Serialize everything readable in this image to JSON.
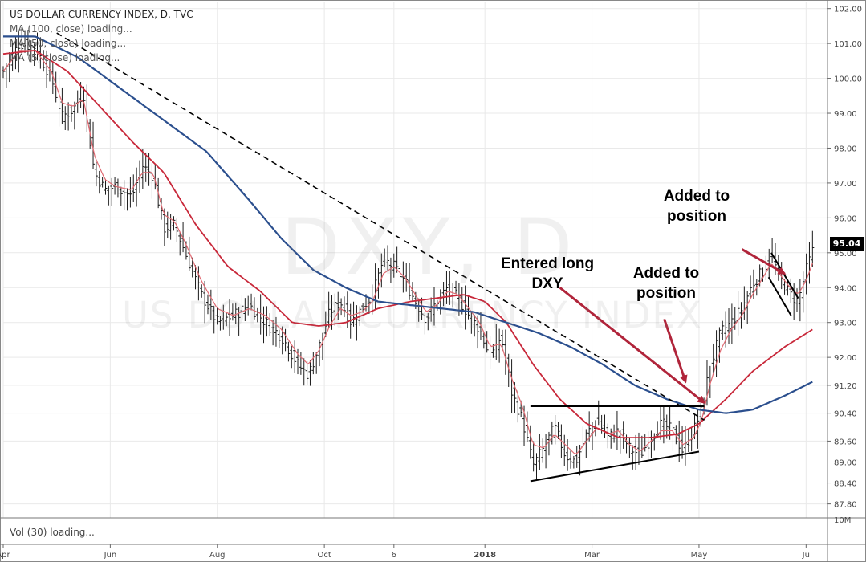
{
  "header": {
    "title": "US DOLLAR CURRENCY INDEX, D, TVC",
    "ma100_text": "MA (100, close) loading...",
    "ma50_text": "MA (50, close) loading...",
    "ma5_text": "MA (5, close) loading..."
  },
  "volume_label": "Vol (30) loading...",
  "watermark": {
    "symbol": "DXY, D",
    "name": "US DOLLAR CURRENCY INDEX"
  },
  "last_price": "95.04",
  "annotations": {
    "entered": "Entered long DXY",
    "added1": "Added to position",
    "added2": "Added to position"
  },
  "colors": {
    "ma100": "#2b4f8e",
    "ma50": "#c8283a",
    "ma5": "#e06a72",
    "bars": "#1a1a1a",
    "arrows": "#b0243a",
    "grid": "#e9e9e9"
  },
  "chart_data": {
    "type": "ohlc",
    "title": "US DOLLAR CURRENCY INDEX, D, TVC",
    "x_tick_labels": [
      "Apr",
      "Jun",
      "Aug",
      "Oct",
      "6",
      "2018",
      "Mar",
      "May",
      "Ju"
    ],
    "x_tick_positions": [
      0,
      2,
      4,
      6,
      7.3,
      9,
      11,
      13,
      15
    ],
    "y_tick_labels": [
      "102.00",
      "101.00",
      "100.00",
      "99.00",
      "98.00",
      "97.00",
      "96.00",
      "95.00",
      "94.00",
      "93.00",
      "92.00",
      "91.20",
      "90.40",
      "89.60",
      "89.00",
      "88.40",
      "87.80"
    ],
    "y_ticks": [
      102.0,
      101.0,
      100.0,
      99.0,
      98.0,
      97.0,
      96.0,
      95.0,
      94.0,
      93.0,
      92.0,
      91.2,
      90.4,
      89.6,
      89.0,
      88.4,
      87.8
    ],
    "volume_axis_label": "10M",
    "price_key_points": [
      [
        0.0,
        100.2
      ],
      [
        0.3,
        101.0
      ],
      [
        0.6,
        100.9
      ],
      [
        0.9,
        100.0
      ],
      [
        1.1,
        98.9
      ],
      [
        1.3,
        99.1
      ],
      [
        1.5,
        99.6
      ],
      [
        1.7,
        97.3
      ],
      [
        1.9,
        96.8
      ],
      [
        2.1,
        96.9
      ],
      [
        2.4,
        96.6
      ],
      [
        2.6,
        97.5
      ],
      [
        2.8,
        97.2
      ],
      [
        3.0,
        95.7
      ],
      [
        3.2,
        95.8
      ],
      [
        3.4,
        95.0
      ],
      [
        3.7,
        93.8
      ],
      [
        4.0,
        93.0
      ],
      [
        4.3,
        93.2
      ],
      [
        4.6,
        93.5
      ],
      [
        4.9,
        93.0
      ],
      [
        5.2,
        92.6
      ],
      [
        5.5,
        91.8
      ],
      [
        5.7,
        91.5
      ],
      [
        5.9,
        92.3
      ],
      [
        6.1,
        93.3
      ],
      [
        6.3,
        93.6
      ],
      [
        6.5,
        93.0
      ],
      [
        6.7,
        93.4
      ],
      [
        6.9,
        93.8
      ],
      [
        7.1,
        94.8
      ],
      [
        7.3,
        94.6
      ],
      [
        7.5,
        94.2
      ],
      [
        7.7,
        93.6
      ],
      [
        7.9,
        93.1
      ],
      [
        8.1,
        93.6
      ],
      [
        8.3,
        94.0
      ],
      [
        8.5,
        93.7
      ],
      [
        8.7,
        93.2
      ],
      [
        8.9,
        92.8
      ],
      [
        9.1,
        92.0
      ],
      [
        9.3,
        92.6
      ],
      [
        9.5,
        91.0
      ],
      [
        9.7,
        90.2
      ],
      [
        9.9,
        88.9
      ],
      [
        10.1,
        89.4
      ],
      [
        10.3,
        90.0
      ],
      [
        10.5,
        89.2
      ],
      [
        10.7,
        89.0
      ],
      [
        10.9,
        89.8
      ],
      [
        11.1,
        90.2
      ],
      [
        11.3,
        89.7
      ],
      [
        11.5,
        89.9
      ],
      [
        11.7,
        89.4
      ],
      [
        11.9,
        89.2
      ],
      [
        12.1,
        89.7
      ],
      [
        12.3,
        90.1
      ],
      [
        12.5,
        89.9
      ],
      [
        12.7,
        89.3
      ],
      [
        12.9,
        89.9
      ],
      [
        13.05,
        90.5
      ],
      [
        13.2,
        91.7
      ],
      [
        13.4,
        92.7
      ],
      [
        13.6,
        93.0
      ],
      [
        13.8,
        93.4
      ],
      [
        14.0,
        94.1
      ],
      [
        14.2,
        94.5
      ],
      [
        14.35,
        94.9
      ],
      [
        14.5,
        94.3
      ],
      [
        14.7,
        93.8
      ],
      [
        14.85,
        93.6
      ],
      [
        15.0,
        94.5
      ],
      [
        15.12,
        95.04
      ]
    ],
    "ma5_key_points": [
      [
        0.0,
        100.2
      ],
      [
        0.3,
        100.8
      ],
      [
        0.6,
        100.8
      ],
      [
        0.9,
        100.2
      ],
      [
        1.1,
        99.3
      ],
      [
        1.3,
        99.2
      ],
      [
        1.5,
        99.4
      ],
      [
        1.7,
        97.8
      ],
      [
        1.9,
        97.1
      ],
      [
        2.1,
        96.9
      ],
      [
        2.4,
        96.8
      ],
      [
        2.6,
        97.3
      ],
      [
        2.8,
        97.3
      ],
      [
        3.0,
        96.1
      ],
      [
        3.2,
        95.9
      ],
      [
        3.4,
        95.3
      ],
      [
        3.7,
        94.2
      ],
      [
        4.0,
        93.4
      ],
      [
        4.3,
        93.2
      ],
      [
        4.6,
        93.4
      ],
      [
        4.9,
        93.2
      ],
      [
        5.2,
        92.8
      ],
      [
        5.5,
        92.1
      ],
      [
        5.7,
        91.8
      ],
      [
        5.9,
        92.2
      ],
      [
        6.1,
        92.9
      ],
      [
        6.3,
        93.4
      ],
      [
        6.5,
        93.2
      ],
      [
        6.7,
        93.3
      ],
      [
        6.9,
        93.6
      ],
      [
        7.1,
        94.4
      ],
      [
        7.3,
        94.6
      ],
      [
        7.5,
        94.3
      ],
      [
        7.7,
        93.8
      ],
      [
        7.9,
        93.3
      ],
      [
        8.1,
        93.5
      ],
      [
        8.3,
        93.9
      ],
      [
        8.5,
        93.8
      ],
      [
        8.7,
        93.4
      ],
      [
        8.9,
        93.0
      ],
      [
        9.1,
        92.3
      ],
      [
        9.3,
        92.4
      ],
      [
        9.5,
        91.4
      ],
      [
        9.7,
        90.6
      ],
      [
        9.9,
        89.5
      ],
      [
        10.1,
        89.4
      ],
      [
        10.3,
        89.8
      ],
      [
        10.5,
        89.5
      ],
      [
        10.7,
        89.2
      ],
      [
        10.9,
        89.6
      ],
      [
        11.1,
        90.0
      ],
      [
        11.3,
        89.8
      ],
      [
        11.5,
        89.9
      ],
      [
        11.7,
        89.5
      ],
      [
        11.9,
        89.3
      ],
      [
        12.1,
        89.6
      ],
      [
        12.3,
        89.9
      ],
      [
        12.5,
        89.9
      ],
      [
        12.7,
        89.5
      ],
      [
        12.9,
        89.7
      ],
      [
        13.05,
        90.2
      ],
      [
        13.2,
        91.2
      ],
      [
        13.4,
        92.2
      ],
      [
        13.6,
        92.8
      ],
      [
        13.8,
        93.2
      ],
      [
        14.0,
        93.8
      ],
      [
        14.2,
        94.3
      ],
      [
        14.35,
        94.7
      ],
      [
        14.5,
        94.4
      ],
      [
        14.7,
        94.0
      ],
      [
        14.85,
        93.8
      ],
      [
        15.0,
        94.2
      ],
      [
        15.12,
        94.7
      ]
    ],
    "ma50_key_points": [
      [
        0.0,
        100.7
      ],
      [
        0.6,
        100.8
      ],
      [
        1.2,
        100.2
      ],
      [
        1.8,
        99.2
      ],
      [
        2.4,
        98.2
      ],
      [
        3.0,
        97.3
      ],
      [
        3.6,
        95.8
      ],
      [
        4.2,
        94.6
      ],
      [
        4.8,
        93.9
      ],
      [
        5.4,
        93.0
      ],
      [
        5.9,
        92.9
      ],
      [
        6.4,
        93.0
      ],
      [
        7.0,
        93.4
      ],
      [
        7.6,
        93.6
      ],
      [
        8.1,
        93.7
      ],
      [
        8.6,
        93.8
      ],
      [
        9.0,
        93.6
      ],
      [
        9.4,
        93.0
      ],
      [
        9.9,
        91.8
      ],
      [
        10.4,
        90.8
      ],
      [
        10.9,
        90.1
      ],
      [
        11.5,
        89.7
      ],
      [
        12.1,
        89.7
      ],
      [
        12.6,
        89.8
      ],
      [
        13.0,
        90.1
      ],
      [
        13.5,
        90.8
      ],
      [
        14.0,
        91.6
      ],
      [
        14.6,
        92.3
      ],
      [
        15.12,
        92.8
      ]
    ],
    "ma100_key_points": [
      [
        0.0,
        101.2
      ],
      [
        0.6,
        101.2
      ],
      [
        1.4,
        100.6
      ],
      [
        2.2,
        99.7
      ],
      [
        3.0,
        98.8
      ],
      [
        3.8,
        97.9
      ],
      [
        4.6,
        96.5
      ],
      [
        5.2,
        95.4
      ],
      [
        5.8,
        94.5
      ],
      [
        6.4,
        94.0
      ],
      [
        7.0,
        93.6
      ],
      [
        7.6,
        93.5
      ],
      [
        8.2,
        93.4
      ],
      [
        8.8,
        93.3
      ],
      [
        9.4,
        93.0
      ],
      [
        10.0,
        92.7
      ],
      [
        10.6,
        92.3
      ],
      [
        11.2,
        91.8
      ],
      [
        11.8,
        91.2
      ],
      [
        12.4,
        90.8
      ],
      [
        13.0,
        90.5
      ],
      [
        13.5,
        90.4
      ],
      [
        14.0,
        90.5
      ],
      [
        14.6,
        90.9
      ],
      [
        15.12,
        91.3
      ]
    ],
    "trendlines": [
      {
        "name": "falling-resistance",
        "style": "dashed",
        "from": [
          1.0,
          101.3
        ],
        "to": [
          13.1,
          90.2
        ]
      },
      {
        "name": "triangle-top",
        "style": "solid",
        "from": [
          9.85,
          90.6
        ],
        "to": [
          13.1,
          90.6
        ]
      },
      {
        "name": "triangle-bottom",
        "style": "solid",
        "from": [
          9.85,
          88.45
        ],
        "to": [
          13.0,
          89.3
        ]
      },
      {
        "name": "flag-upper",
        "style": "solid",
        "from": [
          14.35,
          95.0
        ],
        "to": [
          14.85,
          93.7
        ]
      },
      {
        "name": "flag-lower",
        "style": "solid",
        "from": [
          14.3,
          94.3
        ],
        "to": [
          14.72,
          93.2
        ]
      }
    ],
    "arrows": [
      {
        "name": "entered-long",
        "from": [
          10.4,
          94.0
        ],
        "to": [
          13.1,
          90.7
        ]
      },
      {
        "name": "added-1",
        "from": [
          12.35,
          93.1
        ],
        "to": [
          12.75,
          91.3
        ]
      },
      {
        "name": "added-2",
        "from": [
          13.8,
          95.1
        ],
        "to": [
          14.6,
          94.4
        ]
      }
    ],
    "ylim": [
      87.4,
      102.2
    ],
    "xlim": [
      0,
      15.4
    ]
  }
}
